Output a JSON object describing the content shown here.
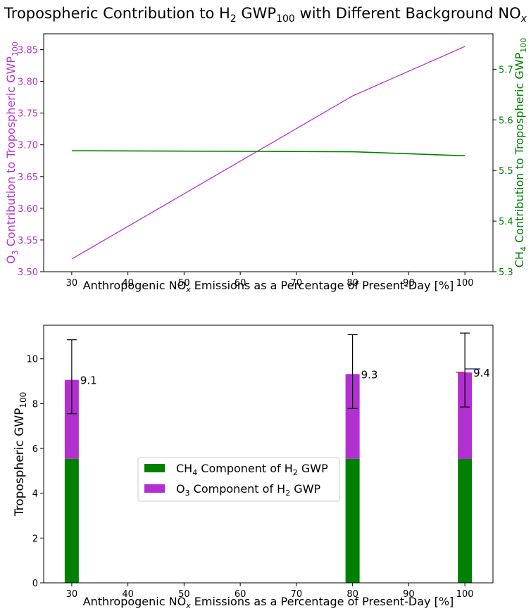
{
  "figure": {
    "title_main": "Tropospheric Contribution to H",
    "title_sub2": "2",
    "title_gwp": " GWP",
    "title_sub100": "100",
    "title_rest": " with Different Background NO",
    "title_subx": "x"
  },
  "colors": {
    "o3": "#b633cf",
    "ch4": "#008000",
    "o3_bar": "#b22fd0",
    "ch4_bar": "#008000",
    "axis": "#000000",
    "red_marker": "#e02020",
    "blue_marker": "#1a1a8c"
  },
  "chart_data": [
    {
      "type": "line",
      "x": [
        30,
        80,
        100
      ],
      "xlim": [
        25,
        105
      ],
      "xticks": [
        "30",
        "40",
        "50",
        "60",
        "70",
        "80",
        "90",
        "100"
      ],
      "xlabel": {
        "pre": "Anthropogenic NO",
        "sub": "x",
        "post": " Emissions as a Percentage of Present-Day [%]"
      },
      "series": [
        {
          "name": "O3 Contribution",
          "axis": "left",
          "values": [
            3.52,
            3.777,
            3.855
          ]
        },
        {
          "name": "CH4 Contribution",
          "axis": "right",
          "values": [
            5.539,
            5.537,
            5.529
          ]
        }
      ],
      "ylim_left": [
        3.5,
        3.875
      ],
      "yticks_left": [
        "3.50",
        "3.55",
        "3.60",
        "3.65",
        "3.70",
        "3.75",
        "3.80",
        "3.85"
      ],
      "ylabel_left": {
        "pre": "O",
        "sub1": "3",
        "mid": " Contribution to Tropospheric GWP",
        "sub2": "100"
      },
      "ylim_right": [
        5.3,
        5.77
      ],
      "yticks_right": [
        "5.3",
        "5.4",
        "5.5",
        "5.6",
        "5.7"
      ],
      "ylabel_right": {
        "pre": "CH",
        "sub1": "4",
        "mid": " Contribution to Tropospheric GWP",
        "sub2": "100"
      }
    },
    {
      "type": "bar",
      "stacked": true,
      "x": [
        30,
        80,
        100
      ],
      "xlim": [
        25,
        105
      ],
      "xticks": [
        "30",
        "40",
        "50",
        "60",
        "70",
        "80",
        "90",
        "100"
      ],
      "xlabel": {
        "pre": "Anthropogenic NO",
        "sub": "x",
        "post": " Emissions as a Percentage of Present-Day [%]"
      },
      "series": [
        {
          "name": "CH4 Component of H2 GWP",
          "values": [
            5.54,
            5.54,
            5.53
          ]
        },
        {
          "name": "O3 Component of H2 GWP",
          "values": [
            3.52,
            3.78,
            3.86
          ]
        }
      ],
      "totals": [
        9.06,
        9.32,
        9.39
      ],
      "total_labels": [
        "9.1",
        "9.3",
        "9.4"
      ],
      "error_high": [
        10.85,
        11.08,
        11.15
      ],
      "error_low": [
        7.55,
        7.78,
        7.85
      ],
      "extra_markers": [
        {
          "color": "red",
          "x_from": 100,
          "x_to": 100,
          "value": 9.4
        },
        {
          "color": "blue",
          "x_from": 100,
          "x_to": 102,
          "value": 9.55
        }
      ],
      "ylim": [
        0,
        11.5
      ],
      "yticks": [
        "0",
        "2",
        "4",
        "6",
        "8",
        "10"
      ],
      "ylabel": {
        "pre": "Tropospheric GWP",
        "sub": "100"
      },
      "legend": {
        "position": "center-left",
        "entries": [
          {
            "pre": "CH",
            "sub": "4",
            "post": " Component of H",
            "sub2": "2",
            "post2": " GWP"
          },
          {
            "pre": "O",
            "sub": "3",
            "post": " Component of H",
            "sub2": "2",
            "post2": " GWP"
          }
        ]
      }
    }
  ]
}
